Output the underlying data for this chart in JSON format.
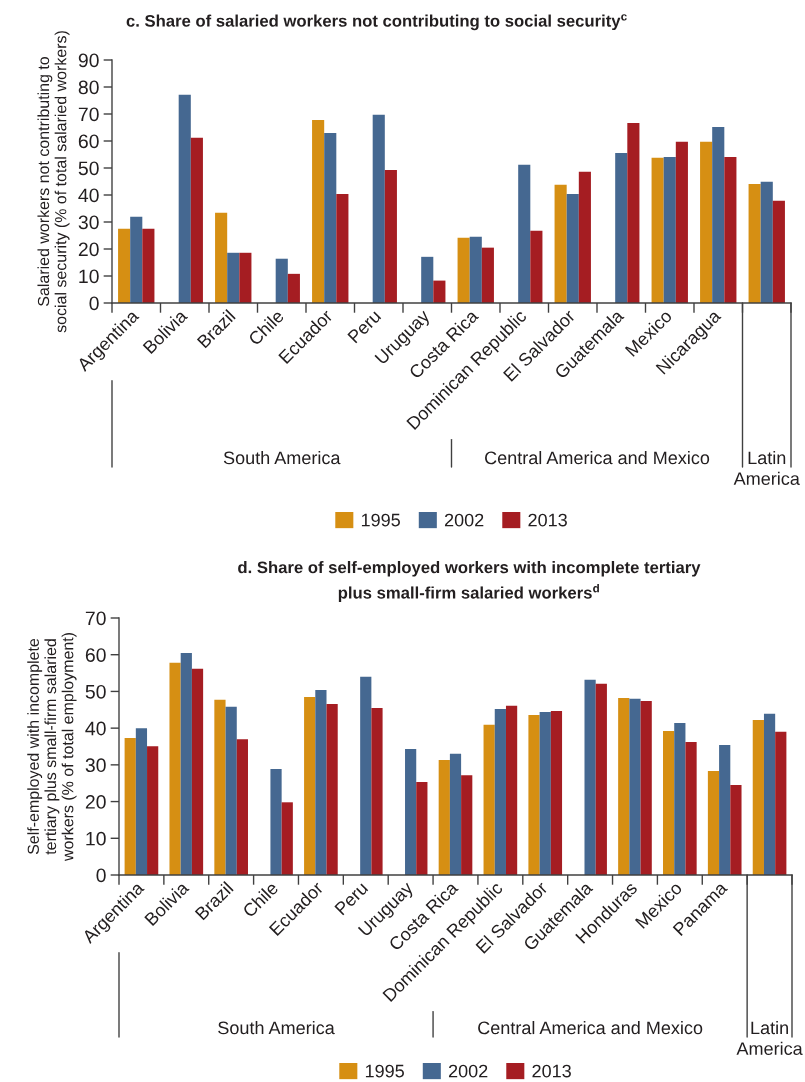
{
  "chart_data": [
    {
      "type": "bar",
      "title": "c. Share of salaried workers not contributing to social security$^{c}$",
      "ylabel": "Salaried workers not contributing to\nsocial security (% of total salaried workers)",
      "categories": [
        "Argentina",
        "Bolivia",
        "Brazil",
        "Chile",
        "Ecuador",
        "Peru",
        "Uruguay",
        "Costa Rica",
        "Dominican Republic",
        "El Salvador",
        "Guatemala",
        "Mexico",
        "Nicaragua",
        null
      ],
      "series": [
        {
          "name": "1995",
          "color": "#d68f13",
          "values": [
            27.5,
            null,
            33.4,
            null,
            67.8,
            null,
            null,
            24.2,
            null,
            43.8,
            null,
            53.8,
            59.7,
            44.1
          ]
        },
        {
          "name": "2002",
          "color": "#456891",
          "values": [
            31.9,
            77.1,
            18.6,
            16.4,
            63.0,
            69.7,
            17.1,
            24.5,
            51.2,
            40.4,
            55.6,
            54.1,
            65.2,
            44.9
          ]
        },
        {
          "name": "2013",
          "color": "#a51d22",
          "values": [
            27.5,
            61.2,
            18.6,
            10.8,
            40.4,
            49.3,
            8.3,
            20.5,
            26.8,
            48.6,
            66.7,
            59.7,
            54.1,
            37.9
          ]
        }
      ],
      "ylim": [
        0,
        90
      ],
      "yticks": [
        0,
        10,
        20,
        30,
        40,
        50,
        60,
        70,
        80,
        90
      ],
      "legend": "bottom",
      "annotations": [
        "South America",
        "Central America and Mexico",
        "Latin\nAmerica"
      ]
    },
    {
      "type": "bar",
      "title": "d. Share of self-employed workers with incomplete tertiary\nplus small-firm salaried workers$^{d}$",
      "ylabel": "Self-employed with incomplete\ntertiary plus small-firm salaried\nworkers (% of total employment)",
      "categories": [
        "Argentina",
        "Bolivia",
        "Brazil",
        "Chile",
        "Ecuador",
        "Peru",
        "Uruguay",
        "Costa Rica",
        "Dominican Republic",
        "El Salvador",
        "Guatemala",
        "Honduras",
        "Mexico",
        "Panama",
        null
      ],
      "series": [
        {
          "name": "1995",
          "color": "#d68f13",
          "values": [
            37.3,
            57.8,
            47.7,
            null,
            48.5,
            null,
            null,
            31.3,
            40.9,
            43.6,
            null,
            48.2,
            39.2,
            28.3,
            42.2
          ]
        },
        {
          "name": "2002",
          "color": "#456891",
          "values": [
            40.0,
            60.5,
            45.8,
            28.9,
            50.4,
            54.0,
            34.3,
            33.0,
            45.2,
            44.4,
            53.2,
            48.0,
            41.4,
            35.4,
            43.9
          ]
        },
        {
          "name": "2013",
          "color": "#a51d22",
          "values": [
            35.1,
            56.2,
            37.0,
            19.8,
            46.6,
            45.5,
            25.3,
            27.2,
            46.1,
            44.7,
            52.1,
            47.4,
            36.2,
            24.5,
            39.0
          ]
        }
      ],
      "ylim": [
        0,
        70
      ],
      "yticks": [
        0,
        10,
        20,
        30,
        40,
        50,
        60,
        70
      ],
      "legend": "bottom",
      "annotations": [
        "South America",
        "Central America and Mexico",
        "Latin\nAmerica"
      ]
    }
  ]
}
